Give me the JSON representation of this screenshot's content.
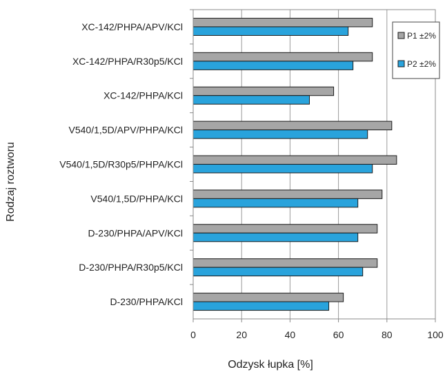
{
  "chart_data": {
    "type": "bar",
    "orientation": "horizontal",
    "title": "",
    "xlabel": "Odzysk łupka [%]",
    "ylabel": "Rodzaj roztworu",
    "xlim": [
      0,
      100
    ],
    "xticks": [
      0,
      20,
      40,
      60,
      80,
      100
    ],
    "grid": "vertical",
    "legend_position": "top-right",
    "categories": [
      "XC-142/PHPA/APV/KCl",
      "XC-142/PHPA/R30p5/KCl",
      "XC-142/PHPA/KCl",
      "V540/1,5D/APV/PHPA/KCl",
      "V540/1,5D/R30p5/PHPA/KCl",
      "V540/1,5D/PHPA/KCl",
      "D-230/PHPA/APV/KCl",
      "D-230/PHPA/R30p5/KCl",
      "D-230/PHPA/KCl"
    ],
    "series": [
      {
        "name": "P1 ±2%",
        "color": "#a6a6a6",
        "values": [
          74,
          74,
          58,
          82,
          84,
          78,
          76,
          76,
          62
        ]
      },
      {
        "name": "P2 ±2%",
        "color": "#29a3dc",
        "values": [
          64,
          66,
          48,
          72,
          74,
          68,
          68,
          70,
          56
        ]
      }
    ]
  }
}
